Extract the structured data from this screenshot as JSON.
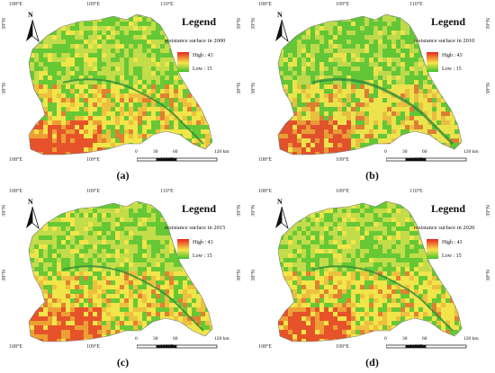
{
  "colors": {
    "high": "#e8231f",
    "mid": "#f7e64a",
    "low": "#3fbf2e",
    "river": "#2f8a3a"
  },
  "panels": [
    {
      "caption": "(a)",
      "legend_title": "Legend",
      "legend_subtitle": "resistance surface in 2000",
      "high_label": "High : 43",
      "low_label": "Low : 15",
      "dominant_tone": "yellow-green"
    },
    {
      "caption": "(b)",
      "legend_title": "Legend",
      "legend_subtitle": "resistance surface in 2010",
      "high_label": "High : 43",
      "low_label": "Low : 15",
      "dominant_tone": "green-yellow"
    },
    {
      "caption": "(c)",
      "legend_title": "Legend",
      "legend_subtitle": "resistance surface in 2015",
      "high_label": "High : 43",
      "low_label": "Low : 15",
      "dominant_tone": "yellow-green"
    },
    {
      "caption": "(d)",
      "legend_title": "Legend",
      "legend_subtitle": "resistance surface in 2020",
      "high_label": "High : 43",
      "low_label": "Low : 15",
      "dominant_tone": "yellow-green"
    }
  ],
  "coords": {
    "lon": [
      "108°E",
      "109°E",
      "110°E"
    ],
    "lat": [
      "39°N",
      "38°N"
    ]
  },
  "north_label": "N",
  "scale": {
    "ticks": [
      "0",
      "30",
      "60",
      "120 km"
    ]
  }
}
